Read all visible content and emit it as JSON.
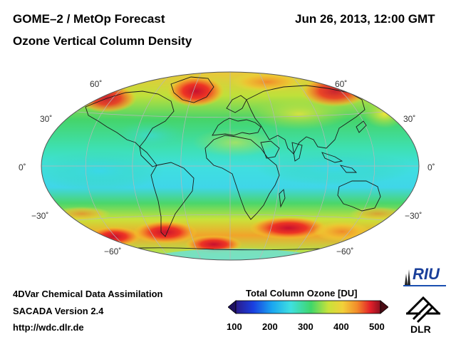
{
  "header": {
    "title_left": "GOME–2 / MetOp Forecast",
    "subtitle": "Ozone Vertical Column Density",
    "datetime": "Jun 26, 2013, 12:00 GMT"
  },
  "map": {
    "projection": "Hammer-Aitoff",
    "lat_labels_left": [
      "60˚",
      "30˚",
      "0˚",
      "−30˚",
      "−60˚"
    ],
    "lat_labels_right": [
      "60˚",
      "30˚",
      "0˚",
      "−30˚",
      "−60˚"
    ],
    "field_colors": {
      "background": "#38d06a",
      "tropics": "#3fe0e0",
      "low": "#2f7fe0",
      "mid": "#e8e23a",
      "high": "#f39a2a",
      "max": "#e6212a"
    }
  },
  "footer": {
    "line1": "4DVar Chemical Data Assimilation",
    "line2": "SACADA Version 2.4",
    "line3": "http://wdc.dlr.de"
  },
  "colorbar": {
    "title": "Total Column Ozone [DU]",
    "ticks": [
      "100",
      "200",
      "300",
      "400",
      "500"
    ]
  },
  "logos": {
    "riu": "RIU",
    "dlr": "DLR"
  }
}
